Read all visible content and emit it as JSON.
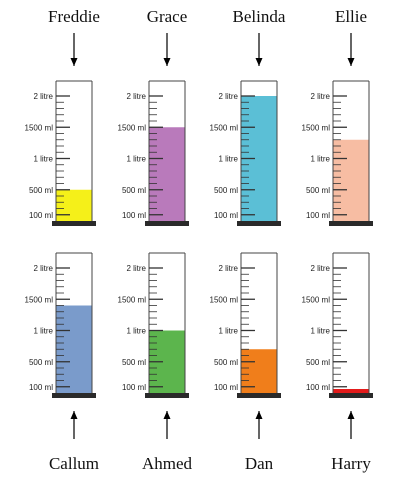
{
  "scale": {
    "labels": [
      {
        "text": "2 litre",
        "ml": 2000
      },
      {
        "text": "1500 ml",
        "ml": 1500
      },
      {
        "text": "1 litre",
        "ml": 1000
      },
      {
        "text": "500 ml",
        "ml": 500
      },
      {
        "text": "100 ml",
        "ml": 100
      }
    ]
  },
  "cylinders": [
    {
      "name": "Freddie",
      "volume_ml": 500,
      "color": "#f5f019"
    },
    {
      "name": "Grace",
      "volume_ml": 1500,
      "color": "#b97abb"
    },
    {
      "name": "Belinda",
      "volume_ml": 2000,
      "color": "#5bbfd6"
    },
    {
      "name": "Ellie",
      "volume_ml": 1300,
      "color": "#f7bda3"
    },
    {
      "name": "Callum",
      "volume_ml": 1400,
      "color": "#7a9bcb"
    },
    {
      "name": "Ahmed",
      "volume_ml": 1000,
      "color": "#5cb54d"
    },
    {
      "name": "Dan",
      "volume_ml": 700,
      "color": "#f07e1b"
    },
    {
      "name": "Harry",
      "volume_ml": 0,
      "color": "#e31b1b"
    }
  ]
}
